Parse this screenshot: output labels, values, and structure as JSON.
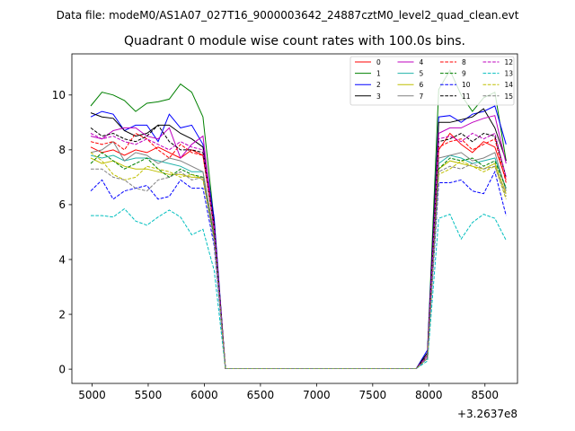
{
  "header_note": "Data file: modeM0/AS1A07_027T16_9000003642_24887cztM0_level2_quad_clean.evt",
  "chart_data": {
    "type": "line",
    "title": "Quadrant 0 module wise count rates with 100.0s bins.",
    "xlabel": "",
    "ylabel": "",
    "x_offset_label": "+3.2637e8",
    "xlim": [
      4820,
      8790
    ],
    "ylim": [
      -0.52,
      11.5
    ],
    "x_ticks": [
      5000,
      5500,
      6000,
      6500,
      7000,
      7500,
      8000,
      8500
    ],
    "y_ticks": [
      0,
      2,
      4,
      6,
      8,
      10
    ],
    "grid": false,
    "legend_position": "top-right",
    "x": [
      4988,
      5088,
      5188,
      5288,
      5388,
      5488,
      5588,
      5688,
      5788,
      5888,
      5988,
      6088,
      6188,
      6288,
      6388,
      6488,
      6588,
      6688,
      6788,
      6888,
      6988,
      7088,
      7188,
      7288,
      7388,
      7488,
      7588,
      7688,
      7788,
      7888,
      7988,
      8088,
      8188,
      8288,
      8388,
      8488,
      8588,
      8688
    ],
    "series": [
      {
        "name": "0",
        "color": "#ff0000",
        "dash": false,
        "values": [
          8.1,
          7.9,
          8.0,
          7.8,
          8.0,
          7.9,
          8.1,
          7.9,
          7.7,
          8.0,
          7.8,
          5.2,
          0.02,
          0.02,
          0.02,
          0.02,
          0.02,
          0.02,
          0.02,
          0.02,
          0.02,
          0.02,
          0.02,
          0.02,
          0.02,
          0.02,
          0.02,
          0.02,
          0.02,
          0.02,
          0.5,
          8.0,
          8.6,
          8.2,
          7.9,
          8.3,
          8.1,
          6.9
        ]
      },
      {
        "name": "1",
        "color": "#008000",
        "dash": false,
        "values": [
          9.6,
          10.1,
          10.0,
          9.8,
          9.4,
          9.7,
          9.75,
          9.85,
          10.4,
          10.1,
          9.2,
          5.4,
          0.02,
          0.02,
          0.02,
          0.02,
          0.02,
          0.02,
          0.02,
          0.02,
          0.02,
          0.02,
          0.02,
          0.02,
          0.02,
          0.02,
          0.02,
          0.02,
          0.02,
          0.02,
          0.6,
          10.2,
          10.9,
          10.0,
          9.4,
          9.9,
          10.1,
          7.6
        ]
      },
      {
        "name": "2",
        "color": "#0000ff",
        "dash": false,
        "values": [
          9.2,
          9.4,
          9.3,
          8.7,
          8.9,
          8.9,
          8.3,
          9.3,
          8.8,
          8.9,
          8.2,
          5.5,
          0.02,
          0.02,
          0.02,
          0.02,
          0.02,
          0.02,
          0.02,
          0.02,
          0.02,
          0.02,
          0.02,
          0.02,
          0.02,
          0.02,
          0.02,
          0.02,
          0.02,
          0.02,
          0.7,
          9.2,
          9.25,
          9.0,
          9.3,
          9.4,
          9.6,
          8.2
        ]
      },
      {
        "name": "3",
        "color": "#000000",
        "dash": false,
        "values": [
          9.35,
          9.2,
          9.15,
          8.7,
          8.5,
          8.6,
          8.9,
          8.9,
          8.6,
          8.4,
          8.1,
          5.3,
          0.02,
          0.02,
          0.02,
          0.02,
          0.02,
          0.02,
          0.02,
          0.02,
          0.02,
          0.02,
          0.02,
          0.02,
          0.02,
          0.02,
          0.02,
          0.02,
          0.02,
          0.02,
          0.6,
          9.0,
          9.0,
          9.1,
          9.2,
          9.5,
          8.8,
          7.6
        ]
      },
      {
        "name": "4",
        "color": "#bf00bf",
        "dash": false,
        "values": [
          8.5,
          8.4,
          8.7,
          8.8,
          8.8,
          8.5,
          8.4,
          8.8,
          7.7,
          8.2,
          8.5,
          5.0,
          0.02,
          0.02,
          0.02,
          0.02,
          0.02,
          0.02,
          0.02,
          0.02,
          0.02,
          0.02,
          0.02,
          0.02,
          0.02,
          0.02,
          0.02,
          0.02,
          0.02,
          0.02,
          0.5,
          8.6,
          8.8,
          8.8,
          9.0,
          9.15,
          9.25,
          7.5
        ]
      },
      {
        "name": "5",
        "color": "#20b2aa",
        "dash": false,
        "values": [
          7.8,
          7.7,
          7.8,
          7.6,
          7.7,
          7.7,
          7.6,
          7.5,
          7.4,
          7.2,
          7.2,
          4.9,
          0.02,
          0.02,
          0.02,
          0.02,
          0.02,
          0.02,
          0.02,
          0.02,
          0.02,
          0.02,
          0.02,
          0.02,
          0.02,
          0.02,
          0.02,
          0.02,
          0.02,
          0.02,
          0.4,
          7.5,
          7.8,
          7.7,
          7.5,
          7.6,
          7.7,
          6.6
        ]
      },
      {
        "name": "6",
        "color": "#bfbf00",
        "dash": false,
        "values": [
          7.7,
          7.5,
          7.6,
          7.4,
          7.3,
          7.3,
          7.2,
          7.1,
          7.1,
          7.0,
          7.0,
          4.8,
          0.02,
          0.02,
          0.02,
          0.02,
          0.02,
          0.02,
          0.02,
          0.02,
          0.02,
          0.02,
          0.02,
          0.02,
          0.02,
          0.02,
          0.02,
          0.02,
          0.02,
          0.02,
          0.4,
          7.3,
          7.6,
          7.5,
          7.4,
          7.3,
          7.5,
          6.4
        ]
      },
      {
        "name": "7",
        "color": "#808080",
        "dash": false,
        "values": [
          7.9,
          8.0,
          8.3,
          7.6,
          7.9,
          7.8,
          7.5,
          7.7,
          7.6,
          7.4,
          7.2,
          4.9,
          0.02,
          0.02,
          0.02,
          0.02,
          0.02,
          0.02,
          0.02,
          0.02,
          0.02,
          0.02,
          0.02,
          0.02,
          0.02,
          0.02,
          0.02,
          0.02,
          0.02,
          0.02,
          0.5,
          7.7,
          7.8,
          7.9,
          7.6,
          7.7,
          7.9,
          6.5
        ]
      },
      {
        "name": "8",
        "color": "#ff0000",
        "dash": true,
        "values": [
          8.3,
          8.2,
          8.3,
          8.0,
          8.6,
          8.4,
          8.0,
          7.7,
          8.2,
          7.9,
          7.8,
          5.1,
          0.02,
          0.02,
          0.02,
          0.02,
          0.02,
          0.02,
          0.02,
          0.02,
          0.02,
          0.02,
          0.02,
          0.02,
          0.02,
          0.02,
          0.02,
          0.02,
          0.02,
          0.02,
          0.5,
          8.1,
          8.3,
          8.4,
          8.0,
          8.2,
          8.4,
          6.8
        ]
      },
      {
        "name": "9",
        "color": "#008000",
        "dash": true,
        "values": [
          7.5,
          7.9,
          7.6,
          7.3,
          7.5,
          7.7,
          7.3,
          7.0,
          7.3,
          7.1,
          7.0,
          4.8,
          0.02,
          0.02,
          0.02,
          0.02,
          0.02,
          0.02,
          0.02,
          0.02,
          0.02,
          0.02,
          0.02,
          0.02,
          0.02,
          0.02,
          0.02,
          0.02,
          0.02,
          0.02,
          0.4,
          7.3,
          7.7,
          7.6,
          7.7,
          7.4,
          7.6,
          6.6
        ]
      },
      {
        "name": "10",
        "color": "#0000ff",
        "dash": true,
        "values": [
          6.5,
          6.9,
          6.2,
          6.5,
          6.6,
          6.7,
          6.2,
          6.3,
          6.9,
          6.6,
          6.6,
          4.5,
          0.02,
          0.02,
          0.02,
          0.02,
          0.02,
          0.02,
          0.02,
          0.02,
          0.02,
          0.02,
          0.02,
          0.02,
          0.02,
          0.02,
          0.02,
          0.02,
          0.02,
          0.02,
          0.4,
          6.8,
          6.8,
          6.9,
          6.5,
          6.4,
          7.2,
          5.6
        ]
      },
      {
        "name": "11",
        "color": "#000000",
        "dash": true,
        "values": [
          8.8,
          8.5,
          8.6,
          8.4,
          8.3,
          8.5,
          8.9,
          8.3,
          8.0,
          8.0,
          7.9,
          5.2,
          0.02,
          0.02,
          0.02,
          0.02,
          0.02,
          0.02,
          0.02,
          0.02,
          0.02,
          0.02,
          0.02,
          0.02,
          0.02,
          0.02,
          0.02,
          0.02,
          0.02,
          0.02,
          0.5,
          8.3,
          8.4,
          8.6,
          8.3,
          8.6,
          8.5,
          7.0
        ]
      },
      {
        "name": "12",
        "color": "#bf00bf",
        "dash": true,
        "values": [
          8.6,
          8.4,
          8.5,
          8.3,
          8.2,
          8.4,
          8.2,
          8.0,
          8.3,
          8.1,
          8.0,
          5.2,
          0.02,
          0.02,
          0.02,
          0.02,
          0.02,
          0.02,
          0.02,
          0.02,
          0.02,
          0.02,
          0.02,
          0.02,
          0.02,
          0.02,
          0.02,
          0.02,
          0.02,
          0.02,
          0.5,
          8.4,
          8.5,
          8.3,
          8.6,
          8.4,
          8.6,
          7.0
        ]
      },
      {
        "name": "13",
        "color": "#00bfbf",
        "dash": true,
        "values": [
          5.6,
          5.6,
          5.55,
          5.85,
          5.4,
          5.25,
          5.55,
          5.8,
          5.55,
          4.9,
          5.1,
          3.6,
          0.02,
          0.02,
          0.02,
          0.02,
          0.02,
          0.02,
          0.02,
          0.02,
          0.02,
          0.02,
          0.02,
          0.02,
          0.02,
          0.02,
          0.02,
          0.02,
          0.02,
          0.02,
          0.3,
          5.5,
          5.65,
          4.75,
          5.35,
          5.65,
          5.5,
          4.7
        ]
      },
      {
        "name": "14",
        "color": "#bfbf00",
        "dash": true,
        "values": [
          7.9,
          7.6,
          7.1,
          6.9,
          7.0,
          7.4,
          7.3,
          7.2,
          7.0,
          7.1,
          6.9,
          4.7,
          0.02,
          0.02,
          0.02,
          0.02,
          0.02,
          0.02,
          0.02,
          0.02,
          0.02,
          0.02,
          0.02,
          0.02,
          0.02,
          0.02,
          0.02,
          0.02,
          0.02,
          0.02,
          0.4,
          7.1,
          7.3,
          7.6,
          7.4,
          7.2,
          7.4,
          6.2
        ]
      },
      {
        "name": "15",
        "color": "#808080",
        "dash": true,
        "values": [
          7.3,
          7.3,
          7.0,
          6.9,
          6.6,
          6.5,
          6.9,
          7.0,
          7.2,
          6.9,
          7.0,
          4.7,
          0.02,
          0.02,
          0.02,
          0.02,
          0.02,
          0.02,
          0.02,
          0.02,
          0.02,
          0.02,
          0.02,
          0.02,
          0.02,
          0.02,
          0.02,
          0.02,
          0.02,
          0.02,
          0.4,
          7.2,
          7.4,
          7.3,
          7.5,
          7.3,
          7.4,
          6.3
        ]
      }
    ]
  }
}
